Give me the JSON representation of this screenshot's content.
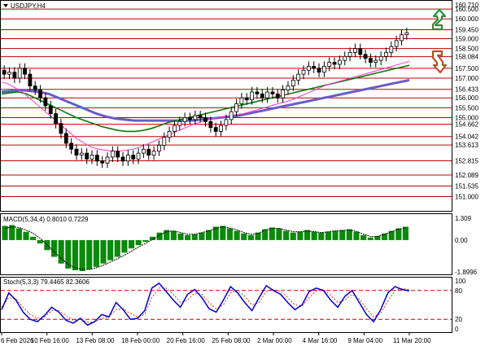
{
  "header": {
    "symbol_label": "USDJPY,H4"
  },
  "indicators": {
    "macd_label": "MACD(5,34,4) 0.8010 0.7229",
    "stoch_label": "Stoch(5,3,3) 79.4465 82.3606"
  },
  "colors": {
    "candle": "#000000",
    "level_line": "#c00000",
    "ma_fast": "#ff33cc",
    "ma_mid": "#0a7a0a",
    "ma_slow": "#6a5acd",
    "macd_hist": "#0a8a0a",
    "macd_signal": "#000000",
    "stoch_main": "#0000cc",
    "stoch_signal": "#cc0000",
    "arrow_up": "#2e8b3a",
    "arrow_down": "#b5502a"
  },
  "icons": {
    "up_arrow": "trend-up-arrow-icon",
    "down_arrow": "trend-down-arrow-icon"
  },
  "chart_data": [
    {
      "type": "candlestick",
      "ylim": [
        150.4,
        160.71
      ],
      "price_axis_labels": [
        "160.710",
        "160.500",
        "160.000",
        "159.450",
        "159.000",
        "158.500",
        "158.084",
        "157.500",
        "157.000",
        "156.433",
        "156.000",
        "155.500",
        "155.000",
        "154.662",
        "154.042",
        "153.613",
        "152.815",
        "152.089",
        "151.535",
        "151.000"
      ],
      "levels": [
        160.5,
        160.0,
        159.45,
        159.0,
        158.5,
        158.084,
        157.5,
        157.0,
        156.433,
        156.0,
        155.5,
        155.0,
        154.662,
        154.042,
        153.613,
        152.815,
        152.089,
        151.535,
        151.0
      ],
      "x_labels": [
        "6 Feb 2026",
        "10 Feb 16:00",
        "13 Feb 08:00",
        "18 Feb 00:00",
        "20 Feb 16:00",
        "25 Feb 08:00",
        "2 Mar 00:00",
        "4 Mar 16:00",
        "9 Mar 04:00",
        "11 Mar 20:00"
      ],
      "close": [
        157.2,
        157.3,
        157.0,
        157.5,
        157.2,
        156.6,
        156.4,
        156.0,
        155.6,
        155.2,
        154.7,
        154.2,
        153.7,
        153.4,
        153.1,
        153.2,
        152.9,
        153.1,
        152.8,
        152.7,
        153.0,
        153.3,
        153.0,
        152.8,
        153.1,
        152.9,
        153.2,
        153.4,
        153.1,
        153.3,
        153.6,
        154.0,
        154.3,
        154.6,
        154.8,
        155.0,
        154.9,
        155.1,
        155.0,
        154.8,
        154.5,
        154.3,
        154.6,
        154.9,
        155.3,
        155.7,
        156.0,
        155.9,
        156.3,
        156.2,
        156.0,
        156.3,
        156.2,
        156.0,
        156.4,
        156.6,
        156.9,
        157.2,
        157.4,
        157.6,
        157.5,
        157.3,
        157.6,
        157.8,
        157.7,
        157.9,
        158.1,
        158.3,
        158.5,
        158.2,
        158.0,
        157.8,
        157.9,
        158.1,
        158.3,
        158.6,
        158.9,
        159.2,
        159.3
      ],
      "ma_fast": [
        156.8,
        156.7,
        156.5,
        156.3,
        156.0,
        155.7,
        155.4,
        155.1,
        154.8,
        154.5,
        154.2,
        153.9,
        153.7,
        153.5,
        153.4,
        153.35,
        153.3,
        153.3,
        153.35,
        153.4,
        153.5,
        153.65,
        153.8,
        153.95,
        154.1,
        154.25,
        154.4,
        154.55,
        154.7,
        154.8,
        154.9,
        155.0,
        155.05,
        155.1,
        155.15,
        155.2,
        155.3,
        155.4,
        155.5,
        155.6,
        155.7,
        155.8,
        155.9,
        156.05,
        156.2,
        156.35,
        156.5,
        156.65,
        156.75,
        156.85,
        156.95,
        157.05,
        157.15,
        157.25,
        157.35,
        157.45,
        157.55,
        157.65,
        157.75,
        157.85
      ],
      "ma_mid": [
        156.2,
        156.25,
        156.3,
        156.2,
        156.0,
        155.8,
        155.6,
        155.4,
        155.2,
        155.0,
        154.85,
        154.7,
        154.55,
        154.45,
        154.35,
        154.3,
        154.3,
        154.35,
        154.45,
        154.6,
        154.75,
        154.85,
        154.95,
        155.05,
        155.15,
        155.25,
        155.35,
        155.45,
        155.55,
        155.65,
        155.75,
        155.85,
        155.95,
        156.05,
        156.15,
        156.25,
        156.35,
        156.45,
        156.55,
        156.65,
        156.75,
        156.85,
        156.95,
        157.05,
        157.15,
        157.25,
        157.35,
        157.45,
        157.55,
        157.65
      ],
      "ma_slow": [
        156.3,
        156.35,
        156.4,
        156.35,
        156.3,
        156.2,
        156.0,
        155.8,
        155.6,
        155.4,
        155.2,
        155.05,
        154.95,
        154.9,
        154.85,
        154.85,
        154.85,
        154.85,
        154.85,
        154.85,
        154.85,
        154.9,
        154.95,
        155.0,
        155.05,
        155.1,
        155.2,
        155.3,
        155.4,
        155.5,
        155.6,
        155.7,
        155.8,
        155.9,
        156.0,
        156.1,
        156.2,
        156.3,
        156.4,
        156.5,
        156.6,
        156.7,
        156.8,
        156.9
      ]
    },
    {
      "type": "bar",
      "name": "MACD",
      "tick_labels": [
        "1.309",
        "0.00",
        "-1.8996"
      ],
      "ylim": [
        -1.8996,
        1.309
      ],
      "values": [
        0.85,
        0.9,
        0.7,
        0.5,
        0.2,
        -0.2,
        -0.6,
        -1.0,
        -1.4,
        -1.7,
        -1.8,
        -1.85,
        -1.75,
        -1.6,
        -1.4,
        -1.2,
        -1.0,
        -0.75,
        -0.5,
        -0.3,
        -0.1,
        0.2,
        0.45,
        0.6,
        0.55,
        0.4,
        0.3,
        0.35,
        0.45,
        0.6,
        0.8,
        0.85,
        0.7,
        0.55,
        0.4,
        0.3,
        0.45,
        0.65,
        0.75,
        0.7,
        0.55,
        0.45,
        0.5,
        0.6,
        0.5,
        0.45,
        0.5,
        0.55,
        0.6,
        0.65,
        0.5,
        0.3,
        0.15,
        0.25,
        0.4,
        0.55,
        0.7,
        0.8
      ],
      "signal": [
        0.7,
        0.8,
        0.75,
        0.6,
        0.4,
        0.1,
        -0.3,
        -0.7,
        -1.1,
        -1.45,
        -1.65,
        -1.75,
        -1.75,
        -1.65,
        -1.5,
        -1.3,
        -1.1,
        -0.9,
        -0.65,
        -0.4,
        -0.2,
        0.05,
        0.3,
        0.5,
        0.55,
        0.45,
        0.35,
        0.35,
        0.45,
        0.55,
        0.7,
        0.8,
        0.72,
        0.6,
        0.45,
        0.35,
        0.4,
        0.6,
        0.7,
        0.7,
        0.6,
        0.5,
        0.5,
        0.55,
        0.5,
        0.45,
        0.5,
        0.55,
        0.58,
        0.6,
        0.52,
        0.35,
        0.2,
        0.22,
        0.35,
        0.5,
        0.65,
        0.72
      ]
    },
    {
      "type": "line",
      "name": "Stochastic",
      "tick_labels": [
        "100",
        "80",
        "20",
        "0"
      ],
      "ylim": [
        0,
        100
      ],
      "levels": [
        80,
        20
      ],
      "main": [
        40,
        75,
        60,
        35,
        20,
        15,
        28,
        45,
        35,
        18,
        12,
        22,
        8,
        15,
        30,
        25,
        55,
        40,
        20,
        22,
        38,
        85,
        95,
        78,
        60,
        45,
        72,
        82,
        65,
        42,
        35,
        60,
        88,
        75,
        55,
        38,
        65,
        90,
        80,
        72,
        55,
        40,
        50,
        78,
        85,
        80,
        60,
        45,
        68,
        80,
        55,
        30,
        15,
        40,
        75,
        88,
        82,
        79
      ],
      "signal": [
        45,
        65,
        62,
        45,
        30,
        22,
        25,
        38,
        38,
        28,
        18,
        20,
        14,
        14,
        22,
        25,
        40,
        42,
        32,
        25,
        30,
        65,
        85,
        85,
        72,
        55,
        60,
        75,
        72,
        55,
        42,
        50,
        75,
        80,
        68,
        50,
        55,
        78,
        82,
        78,
        65,
        50,
        48,
        65,
        80,
        82,
        70,
        55,
        60,
        72,
        62,
        42,
        25,
        32,
        58,
        80,
        84,
        82
      ]
    }
  ]
}
